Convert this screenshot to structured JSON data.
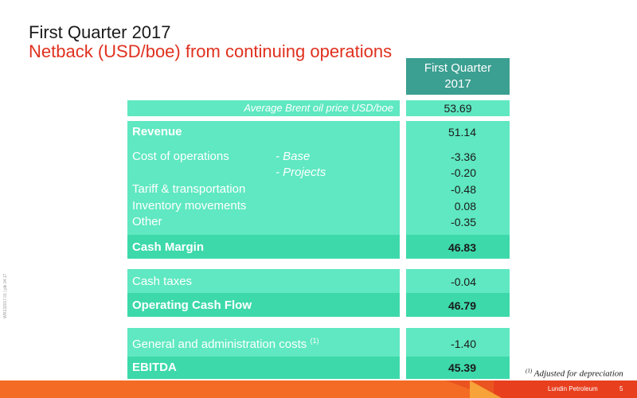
{
  "title": "First Quarter 2017",
  "subtitle": "Netback (USD/boe) from continuing operations",
  "column_header": [
    "First Quarter",
    "2017"
  ],
  "brent": {
    "label": "Average Brent oil price USD/boe",
    "value": "53.69"
  },
  "section1": {
    "revenue": {
      "label": "Revenue",
      "value": "51.14"
    },
    "cost_ops_label": "Cost of operations",
    "base": {
      "label": "- Base",
      "value": "-3.36"
    },
    "projects": {
      "label": "- Projects",
      "value": "-0.20"
    },
    "tariff": {
      "label": "Tariff & transportation",
      "value": "-0.48"
    },
    "inventory": {
      "label": "Inventory movements",
      "value": "0.08"
    },
    "other": {
      "label": "Other",
      "value": "-0.35"
    },
    "cash_margin": {
      "label": "Cash Margin",
      "value": "46.83"
    }
  },
  "section2": {
    "cash_taxes": {
      "label": "Cash taxes",
      "value": "-0.04"
    },
    "ocf": {
      "label": "Operating Cash Flow",
      "value": "46.79"
    }
  },
  "section3": {
    "ga": {
      "label": "General and administration costs",
      "footnote_ref": "(1)",
      "value": "-1.40"
    },
    "ebitda": {
      "label": "EBITDA",
      "value": "45.39"
    }
  },
  "footnote": {
    "ref": "(1)",
    "text": "Adjusted for depreciation"
  },
  "sidenote": "WR132017.01 | jdk 04.17",
  "brand": "Lundin Petroleum",
  "page_number": "5",
  "colors": {
    "panel": "#5fe8c1",
    "panel_dark": "#3dd9aa",
    "header": "#3b9f91",
    "subtitle": "#e0301e",
    "bar": "#e8401f"
  }
}
